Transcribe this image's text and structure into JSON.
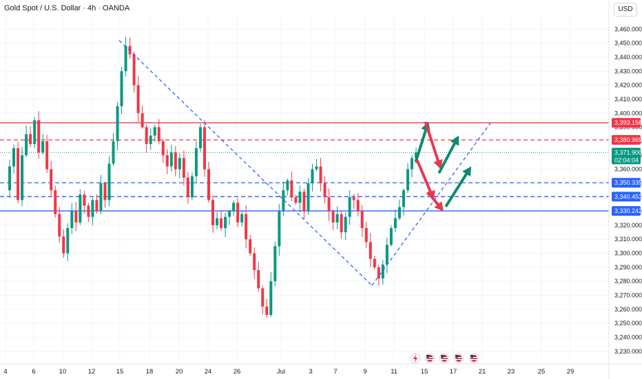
{
  "header": {
    "title": "Gold Spot / U.S. Dollar · 4h · OANDA",
    "currency": "USD"
  },
  "colors": {
    "up": "#089981",
    "down": "#f23645",
    "resistance": "#f23645",
    "support": "#2962ff",
    "trendline": "#2962ff",
    "last_price": "#089981",
    "grid": "#f0f3fa"
  },
  "events": [
    {
      "icon": "lightning-icon"
    },
    {
      "icon": "us-flag-icon"
    },
    {
      "icon": "us-flag-icon"
    },
    {
      "icon": "us-flag-icon"
    },
    {
      "icon": "us-flag-icon"
    }
  ],
  "chart_data": {
    "type": "candlestick",
    "symbol": "Gold Spot / U.S. Dollar",
    "interval": "4h",
    "source": "OANDA",
    "ylim": [
      3225,
      3470
    ],
    "y_ticks": [
      "3,460.000",
      "3,450.000",
      "3,440.000",
      "3,430.000",
      "3,420.000",
      "3,410.000",
      "3,400.000",
      "3,390.000",
      "3,380.000",
      "3,370.000",
      "3,360.000",
      "3,350.000",
      "3,340.000",
      "3,330.000",
      "3,320.000",
      "3,310.000",
      "3,300.000",
      "3,290.000",
      "3,280.000",
      "3,270.000",
      "3,260.000",
      "3,250.000",
      "3,240.000",
      "3,230.000"
    ],
    "x_ticks": [
      "4",
      "6",
      "10",
      "12",
      "15",
      "18",
      "20",
      "24",
      "26",
      "Jul",
      "3",
      "7",
      "9",
      "11",
      "15",
      "17",
      "21",
      "23",
      "25",
      "29"
    ],
    "levels": [
      {
        "label": "3,393.156",
        "value": 3393.156,
        "color": "#f23645",
        "style": "solid"
      },
      {
        "label": "3,380.969",
        "value": 3380.969,
        "color": "#f23645",
        "style": "dashed"
      },
      {
        "label": "3,350.335",
        "value": 3350.335,
        "color": "#2962ff",
        "style": "dashed"
      },
      {
        "label": "3,340.453",
        "value": 3340.453,
        "color": "#2962ff",
        "style": "dashed"
      },
      {
        "label": "3,330.242",
        "value": 3330.242,
        "color": "#2962ff",
        "style": "solid"
      }
    ],
    "last_price": {
      "label": "3,371.900",
      "value": 3371.9,
      "countdown": "02:04:04"
    },
    "price_path": [
      3345,
      3362,
      3375,
      3338,
      3370,
      3385,
      3378,
      3395,
      3372,
      3380,
      3360,
      3345,
      3328,
      3312,
      3300,
      3318,
      3330,
      3322,
      3342,
      3334,
      3326,
      3338,
      3330,
      3350,
      3338,
      3364,
      3380,
      3405,
      3430,
      3448,
      3442,
      3420,
      3400,
      3390,
      3378,
      3384,
      3390,
      3380,
      3370,
      3362,
      3372,
      3360,
      3368,
      3354,
      3340,
      3355,
      3375,
      3390,
      3360,
      3338,
      3320,
      3325,
      3318,
      3326,
      3330,
      3336,
      3322,
      3328,
      3310,
      3300,
      3288,
      3275,
      3262,
      3256,
      3280,
      3305,
      3330,
      3345,
      3352,
      3340,
      3336,
      3344,
      3330,
      3350,
      3360,
      3362,
      3350,
      3340,
      3330,
      3322,
      3328,
      3315,
      3326,
      3340,
      3338,
      3330,
      3318,
      3308,
      3296,
      3290,
      3282,
      3292,
      3306,
      3318,
      3325,
      3333,
      3345,
      3360,
      3368,
      3372
    ]
  }
}
